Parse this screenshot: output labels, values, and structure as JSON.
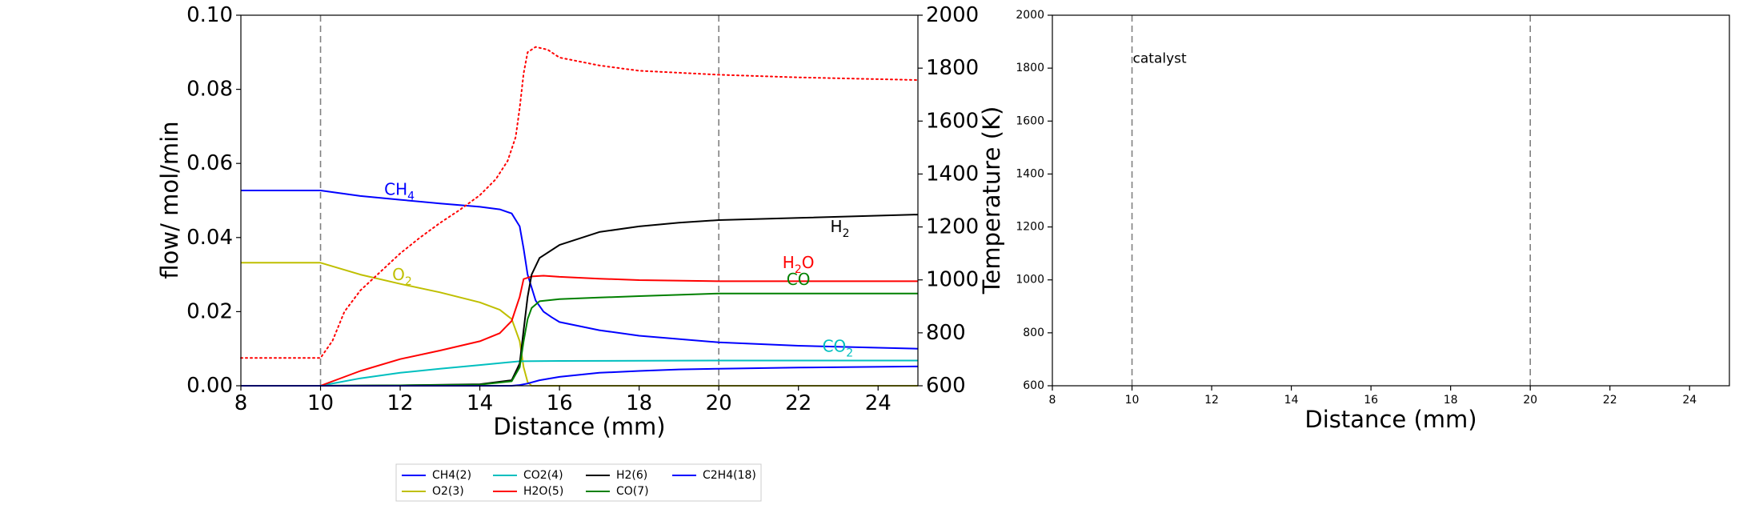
{
  "chart_data": [
    {
      "type": "line",
      "xlabel": "Distance (mm)",
      "ylabel": "flow/ mol/min",
      "y2label": "Temperature (K)",
      "xlim": [
        8,
        25
      ],
      "ylim": [
        0,
        0.1
      ],
      "y2lim": [
        600,
        2000
      ],
      "xticks": [
        "8",
        "10",
        "12",
        "14",
        "16",
        "18",
        "20",
        "22",
        "24"
      ],
      "yticks": [
        "0.00",
        "0.02",
        "0.04",
        "0.06",
        "0.08",
        "0.10"
      ],
      "y2ticks": [
        "600",
        "800",
        "1000",
        "1200",
        "1400",
        "1600",
        "1800",
        "2000"
      ],
      "vlines": [
        10,
        20
      ],
      "grid": false,
      "legend_position": "below plot",
      "colors": {
        "CH4": "#0000ff",
        "O2": "#bfbf00",
        "CO2": "#00bfbf",
        "H2O": "#ff0000",
        "H2": "#000000",
        "CO": "#008000",
        "C2H4": "#0000ff",
        "temperature": "#ff0000"
      },
      "series": [
        {
          "name": "CH4(2)",
          "color": "#0000ff",
          "x": [
            8,
            10,
            11,
            12,
            13,
            14,
            14.5,
            14.8,
            15.0,
            15.1,
            15.2,
            15.4,
            15.6,
            15.8,
            16,
            17,
            18,
            20,
            22,
            25
          ],
          "y": [
            0.0527,
            0.0527,
            0.0512,
            0.0502,
            0.0492,
            0.0483,
            0.0476,
            0.0465,
            0.043,
            0.037,
            0.03,
            0.023,
            0.02,
            0.0185,
            0.0172,
            0.015,
            0.0135,
            0.0117,
            0.0108,
            0.01
          ]
        },
        {
          "name": "O2(3)",
          "color": "#bfbf00",
          "x": [
            8,
            10,
            11,
            12,
            13,
            14,
            14.5,
            14.8,
            15.0,
            15.1,
            15.2,
            15.3,
            16,
            20,
            25
          ],
          "y": [
            0.0332,
            0.0332,
            0.03,
            0.0275,
            0.0252,
            0.0225,
            0.0205,
            0.018,
            0.012,
            0.005,
            0.001,
            0.0,
            0.0,
            0.0,
            0.0
          ]
        },
        {
          "name": "CO2(4)",
          "color": "#00bfbf",
          "x": [
            8,
            10,
            11,
            12,
            13,
            14,
            15,
            16,
            20,
            25
          ],
          "y": [
            0,
            0,
            0.002,
            0.0035,
            0.0046,
            0.0056,
            0.0066,
            0.0067,
            0.0068,
            0.0068
          ]
        },
        {
          "name": "H2O(5)",
          "color": "#ff0000",
          "x": [
            8,
            10,
            11,
            12,
            13,
            14,
            14.5,
            14.8,
            15.0,
            15.1,
            15.3,
            15.6,
            16,
            17,
            18,
            20,
            22,
            25
          ],
          "y": [
            0,
            0,
            0.004,
            0.0072,
            0.0095,
            0.012,
            0.0142,
            0.0175,
            0.024,
            0.0288,
            0.0295,
            0.0297,
            0.0294,
            0.0289,
            0.0285,
            0.0282,
            0.0282,
            0.0282
          ]
        },
        {
          "name": "H2(6)",
          "color": "#000000",
          "x": [
            8,
            10,
            12,
            14,
            14.8,
            15.0,
            15.1,
            15.2,
            15.3,
            15.5,
            16,
            17,
            18,
            19,
            20,
            22,
            25
          ],
          "y": [
            0,
            0,
            0.0001,
            0.0004,
            0.0015,
            0.006,
            0.015,
            0.024,
            0.03,
            0.0345,
            0.038,
            0.0415,
            0.043,
            0.044,
            0.0447,
            0.0453,
            0.0462
          ]
        },
        {
          "name": "CO(7)",
          "color": "#008000",
          "x": [
            8,
            10,
            12,
            14,
            14.8,
            15.0,
            15.1,
            15.2,
            15.3,
            15.5,
            16,
            17,
            18,
            20,
            25
          ],
          "y": [
            0,
            0,
            0.0001,
            0.0003,
            0.0012,
            0.005,
            0.012,
            0.018,
            0.021,
            0.0228,
            0.0234,
            0.0238,
            0.0242,
            0.0249,
            0.0249
          ]
        },
        {
          "name": "C2H4(18)",
          "color": "#0000ff",
          "x": [
            8,
            14.8,
            15.0,
            15.2,
            15.5,
            16,
            17,
            18,
            19,
            20,
            22,
            25
          ],
          "y": [
            0,
            0,
            0.0002,
            0.0006,
            0.0015,
            0.0024,
            0.0035,
            0.004,
            0.0044,
            0.0046,
            0.0049,
            0.0052
          ]
        }
      ],
      "temperature_series": {
        "axis": "right",
        "color": "#ff0000",
        "linestyle": "dotted",
        "x": [
          8,
          10,
          10.3,
          10.6,
          11,
          11.5,
          12,
          12.5,
          13,
          13.5,
          14,
          14.4,
          14.7,
          14.9,
          15.0,
          15.1,
          15.2,
          15.4,
          15.7,
          16,
          17,
          18,
          20,
          22,
          25
        ],
        "y": [
          705,
          705,
          770,
          880,
          960,
          1030,
          1100,
          1160,
          1215,
          1265,
          1320,
          1380,
          1450,
          1540,
          1650,
          1780,
          1860,
          1880,
          1870,
          1840,
          1810,
          1790,
          1775,
          1765,
          1755
        ]
      },
      "annotations": [
        {
          "label": "CH",
          "sub": "4",
          "x": 11.6,
          "y": 0.0515,
          "color": "#0000ff"
        },
        {
          "label": "O",
          "sub": "2",
          "x": 11.8,
          "y": 0.0285,
          "color": "#bfbf00"
        },
        {
          "label": "H",
          "sub": "2",
          "x": 22.8,
          "y": 0.0415,
          "color": "#000000"
        },
        {
          "label": "H",
          "sub": "2",
          "tail": "O",
          "x": 21.6,
          "y": 0.0318,
          "color": "#ff0000"
        },
        {
          "label": "CO",
          "sub": "",
          "x": 21.7,
          "y": 0.0272,
          "color": "#008000"
        },
        {
          "label": "CO",
          "sub": "2",
          "x": 22.6,
          "y": 0.0092,
          "color": "#00bfbf"
        }
      ]
    },
    {
      "type": "line",
      "xlabel": "Distance (mm)",
      "ylabel": "",
      "xlim": [
        8,
        25
      ],
      "ylim": [
        600,
        2000
      ],
      "xticks": [
        "8",
        "10",
        "12",
        "14",
        "16",
        "18",
        "20",
        "22",
        "24"
      ],
      "yticks": [
        "600",
        "800",
        "1000",
        "1200",
        "1400",
        "1600",
        "1800",
        "2000"
      ],
      "vlines": [
        10,
        20
      ],
      "annotations": [
        {
          "label": "catalyst",
          "x": 10.0,
          "y": 1820,
          "color": "#000000"
        }
      ],
      "series": []
    }
  ],
  "legend": {
    "items": [
      {
        "label": "CH4(2)",
        "color": "#0000ff"
      },
      {
        "label": "O2(3)",
        "color": "#bfbf00"
      },
      {
        "label": "CO2(4)",
        "color": "#00bfbf"
      },
      {
        "label": "H2O(5)",
        "color": "#ff0000"
      },
      {
        "label": "H2(6)",
        "color": "#000000"
      },
      {
        "label": "CO(7)",
        "color": "#008000"
      },
      {
        "label": "C2H4(18)",
        "color": "#0000ff"
      }
    ]
  }
}
